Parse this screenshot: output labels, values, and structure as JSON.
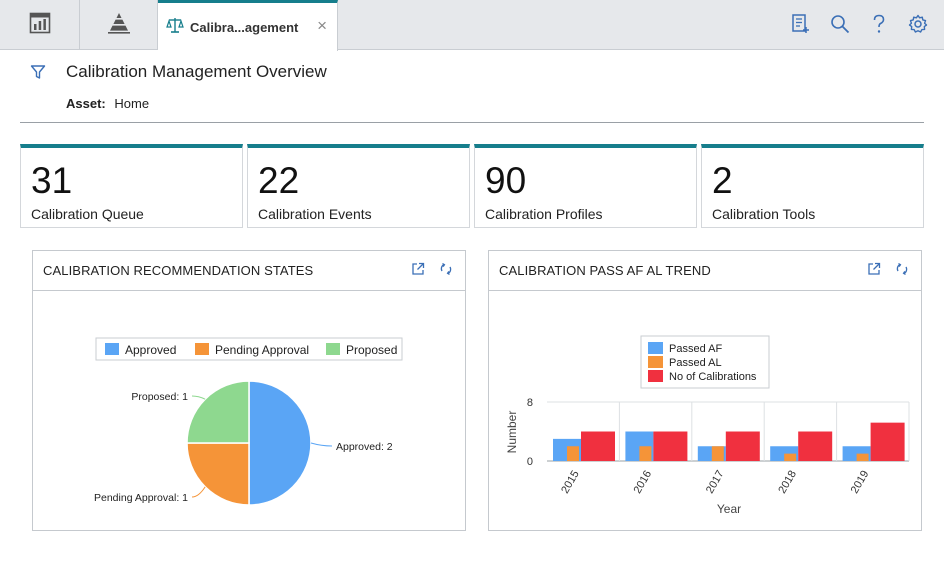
{
  "tabs": {
    "active_label": "Calibra...agement",
    "close_glyph": "×"
  },
  "toolbar_icons": [
    "checklist-icon",
    "search-icon",
    "help-icon",
    "settings-icon"
  ],
  "header": {
    "title": "Calibration Management Overview",
    "asset_label": "Asset:",
    "asset_value": "Home"
  },
  "kpis": [
    {
      "value": "31",
      "caption": "Calibration Queue"
    },
    {
      "value": "22",
      "caption": "Calibration Events"
    },
    {
      "value": "90",
      "caption": "Calibration Profiles"
    },
    {
      "value": "2",
      "caption": "Calibration Tools"
    }
  ],
  "widgets": {
    "states": {
      "title": "CALIBRATION RECOMMENDATION STATES"
    },
    "trend": {
      "title": "CALIBRATION PASS AF AL TREND"
    }
  },
  "colors": {
    "accent": "#167e8c",
    "blue": "#5aa5f5",
    "orange": "#f59438",
    "green": "#8ed88f",
    "red": "#f0303f"
  },
  "chart_data": [
    {
      "type": "pie",
      "legend": [
        "Approved",
        "Pending Approval",
        "Proposed"
      ],
      "labels": [
        "Approved",
        "Pending Approval",
        "Proposed"
      ],
      "values": [
        2,
        1,
        1
      ],
      "data_labels": [
        "Approved: 2",
        "Pending Approval: 1",
        "Proposed: 1"
      ],
      "legend_position": "top"
    },
    {
      "type": "bar",
      "categories": [
        "2015",
        "2016",
        "2017",
        "2018",
        "2019"
      ],
      "series": [
        {
          "name": "Passed AF",
          "values": [
            3.0,
            4.0,
            2.0,
            2.0,
            2.0
          ]
        },
        {
          "name": "Passed AL",
          "values": [
            2.0,
            2.0,
            2.0,
            1.0,
            1.0
          ]
        },
        {
          "name": "No of Calibrations",
          "values": [
            4.0,
            4.0,
            4.0,
            4.0,
            5.2
          ]
        }
      ],
      "xlabel": "Year",
      "ylabel": "Number",
      "y_ticks": [
        "0",
        "8"
      ],
      "ylim": [
        0,
        8
      ],
      "legend_position": "top",
      "grid": true
    }
  ]
}
